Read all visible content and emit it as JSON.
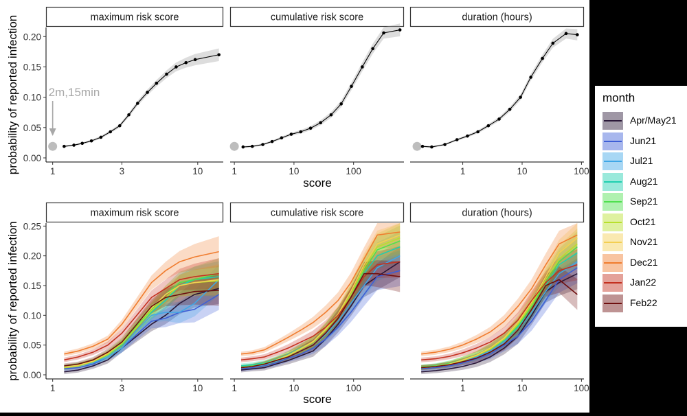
{
  "chart_data": {
    "type": "line",
    "shared": {
      "ylabel": "probability of reported infection",
      "xlabel": "score",
      "facets": [
        "maximum risk score",
        "cumulative risk score",
        "duration (hours)"
      ],
      "legend_title": "month",
      "legend_placement": "right"
    },
    "months": [
      {
        "name": "Apr/May21",
        "color": "#2a1838"
      },
      {
        "name": "Jun21",
        "color": "#3e5fd6"
      },
      {
        "name": "Jul21",
        "color": "#3fa7e6"
      },
      {
        "name": "Aug21",
        "color": "#1fcfb0"
      },
      {
        "name": "Sep21",
        "color": "#4fe04f"
      },
      {
        "name": "Oct21",
        "color": "#b8e02c"
      },
      {
        "name": "Nov21",
        "color": "#f3cf52"
      },
      {
        "name": "Dec21",
        "color": "#f07c2e"
      },
      {
        "name": "Jan22",
        "color": "#c4301f"
      },
      {
        "name": "Feb22",
        "color": "#6e0f0f"
      }
    ],
    "top_row": {
      "ylim": [
        0,
        0.215
      ],
      "yticks": [
        0.0,
        0.05,
        0.1,
        0.15,
        0.2
      ],
      "yticklabels": [
        "0.00",
        "0.05",
        "0.10",
        "0.15",
        "0.20"
      ],
      "annotation": "2m,15min",
      "panels": [
        {
          "title": "maximum risk score",
          "xscale": "log",
          "xlim": [
            0.9,
            15
          ],
          "xticks": [
            1,
            3,
            10
          ],
          "xticklabels": [
            "1",
            "3",
            "10"
          ],
          "reference_point": [
            1,
            0.019
          ],
          "x": [
            1.2,
            1.4,
            1.6,
            1.85,
            2.15,
            2.5,
            2.9,
            3.35,
            3.85,
            4.5,
            5.2,
            6.1,
            7.1,
            8.3,
            9.6,
            14
          ],
          "y": [
            0.019,
            0.021,
            0.024,
            0.028,
            0.034,
            0.043,
            0.053,
            0.071,
            0.09,
            0.108,
            0.123,
            0.138,
            0.15,
            0.157,
            0.162,
            0.17
          ]
        },
        {
          "title": "cumulative risk score",
          "xscale": "log",
          "xlim": [
            0.85,
            700
          ],
          "xticks": [
            1,
            10,
            100
          ],
          "xticklabels": [
            "1",
            "10",
            "100"
          ],
          "reference_point": [
            1,
            0.019
          ],
          "x": [
            1.4,
            2,
            3,
            4.3,
            6.2,
            9,
            13,
            19,
            28,
            42,
            62,
            92,
            140,
            210,
            320,
            600
          ],
          "y": [
            0.018,
            0.019,
            0.022,
            0.027,
            0.033,
            0.039,
            0.043,
            0.049,
            0.058,
            0.071,
            0.089,
            0.118,
            0.15,
            0.18,
            0.206,
            0.211
          ]
        },
        {
          "title": "duration (hours)",
          "xscale": "log",
          "xlim": [
            0.13,
            110
          ],
          "xticks": [
            1,
            10,
            100
          ],
          "xticklabels": [
            "1",
            "10",
            "100"
          ],
          "reference_point": [
            0.17,
            0.019
          ],
          "x": [
            0.21,
            0.3,
            0.5,
            0.8,
            1.2,
            1.8,
            2.7,
            4.1,
            6.2,
            9.4,
            14,
            22,
            33,
            55,
            85
          ],
          "y": [
            0.019,
            0.018,
            0.022,
            0.03,
            0.036,
            0.043,
            0.053,
            0.064,
            0.08,
            0.1,
            0.133,
            0.164,
            0.189,
            0.205,
            0.203
          ]
        }
      ]
    },
    "bottom_row": {
      "ylim": [
        0,
        0.255
      ],
      "yticks": [
        0.0,
        0.05,
        0.1,
        0.15,
        0.2,
        0.25
      ],
      "yticklabels": [
        "0.00",
        "0.05",
        "0.10",
        "0.15",
        "0.20",
        "0.25"
      ],
      "panels": [
        {
          "title": "maximum risk score",
          "xscale": "log",
          "xlim": [
            0.9,
            15
          ],
          "xticks": [
            1,
            3,
            10
          ],
          "xticklabels": [
            "1",
            "3",
            "10"
          ],
          "x": [
            1.2,
            1.5,
            1.9,
            2.4,
            3,
            3.8,
            4.8,
            6,
            7.5,
            9.5,
            14
          ],
          "series": [
            {
              "name": "Apr/May21",
              "y": [
                0.005,
                0.008,
                0.015,
                0.025,
                0.045,
                0.065,
                0.085,
                0.1,
                0.12,
                0.135,
                0.145
              ]
            },
            {
              "name": "Jun21",
              "y": [
                0.01,
                0.012,
                0.018,
                0.03,
                0.045,
                0.068,
                0.09,
                0.095,
                0.105,
                0.11,
                0.135
              ]
            },
            {
              "name": "Jul21",
              "y": [
                0.012,
                0.015,
                0.02,
                0.03,
                0.045,
                0.075,
                0.1,
                0.105,
                0.105,
                0.12,
                0.16
              ]
            },
            {
              "name": "Aug21",
              "y": [
                0.013,
                0.016,
                0.022,
                0.033,
                0.05,
                0.08,
                0.105,
                0.125,
                0.15,
                0.16,
                0.165
              ]
            },
            {
              "name": "Sep21",
              "y": [
                0.013,
                0.016,
                0.022,
                0.035,
                0.052,
                0.082,
                0.11,
                0.135,
                0.155,
                0.16,
                0.17
              ]
            },
            {
              "name": "Oct21",
              "y": [
                0.012,
                0.015,
                0.022,
                0.034,
                0.052,
                0.08,
                0.108,
                0.13,
                0.15,
                0.155,
                0.158
              ]
            },
            {
              "name": "Nov21",
              "y": [
                0.013,
                0.016,
                0.023,
                0.036,
                0.055,
                0.085,
                0.112,
                0.135,
                0.15,
                0.155,
                0.16
              ]
            },
            {
              "name": "Dec21",
              "y": [
                0.035,
                0.04,
                0.048,
                0.06,
                0.085,
                0.12,
                0.155,
                0.175,
                0.19,
                0.198,
                0.207
              ]
            },
            {
              "name": "Jan22",
              "y": [
                0.025,
                0.03,
                0.038,
                0.05,
                0.07,
                0.1,
                0.13,
                0.145,
                0.16,
                0.165,
                0.17
              ]
            },
            {
              "name": "Feb22",
              "y": [
                0.015,
                0.018,
                0.025,
                0.038,
                0.055,
                0.085,
                0.115,
                0.13,
                0.135,
                0.14,
                0.142
              ]
            }
          ]
        },
        {
          "title": "cumulative risk score",
          "xscale": "log",
          "xlim": [
            0.85,
            700
          ],
          "xticks": [
            1,
            10,
            100
          ],
          "xticklabels": [
            "1",
            "10",
            "100"
          ],
          "x": [
            1.3,
            2,
            3.2,
            5,
            8,
            13,
            21,
            34,
            55,
            90,
            150,
            250,
            600
          ],
          "series": [
            {
              "name": "Apr/May21",
              "y": [
                0.008,
                0.01,
                0.012,
                0.018,
                0.024,
                0.032,
                0.04,
                0.06,
                0.085,
                0.115,
                0.15,
                0.165,
                0.19
              ]
            },
            {
              "name": "Jun21",
              "y": [
                0.01,
                0.012,
                0.015,
                0.02,
                0.028,
                0.035,
                0.045,
                0.06,
                0.08,
                0.105,
                0.135,
                0.165,
                0.175
              ]
            },
            {
              "name": "Jul21",
              "y": [
                0.012,
                0.014,
                0.017,
                0.023,
                0.03,
                0.04,
                0.05,
                0.068,
                0.09,
                0.12,
                0.15,
                0.18,
                0.2
              ]
            },
            {
              "name": "Aug21",
              "y": [
                0.015,
                0.017,
                0.02,
                0.026,
                0.034,
                0.045,
                0.055,
                0.075,
                0.1,
                0.13,
                0.17,
                0.2,
                0.215
              ]
            },
            {
              "name": "Sep21",
              "y": [
                0.013,
                0.015,
                0.019,
                0.025,
                0.033,
                0.044,
                0.055,
                0.075,
                0.1,
                0.135,
                0.175,
                0.21,
                0.225
              ]
            },
            {
              "name": "Oct21",
              "y": [
                0.012,
                0.014,
                0.018,
                0.024,
                0.032,
                0.043,
                0.055,
                0.075,
                0.1,
                0.135,
                0.18,
                0.215,
                0.23
              ]
            },
            {
              "name": "Nov21",
              "y": [
                0.012,
                0.014,
                0.018,
                0.025,
                0.033,
                0.044,
                0.056,
                0.077,
                0.102,
                0.14,
                0.185,
                0.22,
                0.235
              ]
            },
            {
              "name": "Dec21",
              "y": [
                0.035,
                0.037,
                0.042,
                0.052,
                0.063,
                0.075,
                0.088,
                0.105,
                0.125,
                0.155,
                0.195,
                0.235,
                0.24
              ]
            },
            {
              "name": "Jan22",
              "y": [
                0.025,
                0.027,
                0.03,
                0.037,
                0.045,
                0.055,
                0.065,
                0.08,
                0.1,
                0.13,
                0.165,
                0.185,
                0.19
              ]
            },
            {
              "name": "Feb22",
              "y": [
                0.012,
                0.014,
                0.018,
                0.024,
                0.03,
                0.04,
                0.05,
                0.07,
                0.095,
                0.13,
                0.17,
                0.17,
                0.165
              ]
            }
          ]
        },
        {
          "title": "duration (hours)",
          "xscale": "log",
          "xlim": [
            0.13,
            110
          ],
          "xticks": [
            1,
            10,
            100
          ],
          "xticklabels": [
            "1",
            "10",
            "100"
          ],
          "x": [
            0.2,
            0.35,
            0.6,
            1.0,
            1.7,
            2.9,
            5,
            8.5,
            14.5,
            25,
            42,
            85
          ],
          "series": [
            {
              "name": "Apr/May21",
              "y": [
                0.005,
                0.007,
                0.01,
                0.014,
                0.02,
                0.03,
                0.045,
                0.065,
                0.1,
                0.14,
                0.155,
                0.17
              ]
            },
            {
              "name": "Jun21",
              "y": [
                0.01,
                0.012,
                0.015,
                0.02,
                0.027,
                0.035,
                0.05,
                0.065,
                0.09,
                0.125,
                0.16,
                0.18
              ]
            },
            {
              "name": "Jul21",
              "y": [
                0.012,
                0.014,
                0.017,
                0.023,
                0.03,
                0.04,
                0.055,
                0.075,
                0.105,
                0.14,
                0.17,
                0.19
              ]
            },
            {
              "name": "Aug21",
              "y": [
                0.013,
                0.015,
                0.019,
                0.025,
                0.032,
                0.043,
                0.058,
                0.08,
                0.11,
                0.15,
                0.185,
                0.205
              ]
            },
            {
              "name": "Sep21",
              "y": [
                0.013,
                0.015,
                0.019,
                0.025,
                0.033,
                0.044,
                0.06,
                0.083,
                0.115,
                0.155,
                0.19,
                0.215
              ]
            },
            {
              "name": "Oct21",
              "y": [
                0.012,
                0.014,
                0.018,
                0.024,
                0.032,
                0.043,
                0.06,
                0.085,
                0.118,
                0.16,
                0.195,
                0.22
              ]
            },
            {
              "name": "Nov21",
              "y": [
                0.012,
                0.014,
                0.018,
                0.025,
                0.033,
                0.045,
                0.062,
                0.088,
                0.122,
                0.165,
                0.205,
                0.23
              ]
            },
            {
              "name": "Dec21",
              "y": [
                0.035,
                0.038,
                0.043,
                0.05,
                0.06,
                0.072,
                0.09,
                0.115,
                0.145,
                0.185,
                0.22,
                0.235
              ]
            },
            {
              "name": "Jan22",
              "y": [
                0.025,
                0.027,
                0.031,
                0.037,
                0.045,
                0.055,
                0.07,
                0.092,
                0.125,
                0.155,
                0.175,
                0.185
              ]
            },
            {
              "name": "Feb22",
              "y": [
                0.012,
                0.014,
                0.017,
                0.022,
                0.028,
                0.038,
                0.052,
                0.075,
                0.11,
                0.15,
                0.16,
                0.135
              ]
            }
          ]
        }
      ]
    }
  }
}
